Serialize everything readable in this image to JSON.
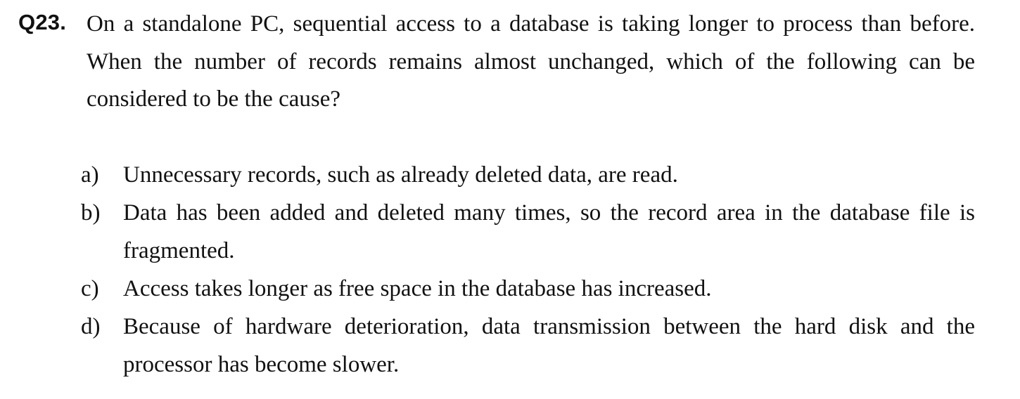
{
  "question": {
    "number": "Q23.",
    "text": "On a standalone PC, sequential access to a database is taking longer to process than before. When the number of records remains almost unchanged, which of the following can be considered to be the cause?"
  },
  "options": [
    {
      "letter": "a)",
      "text": "Unnecessary records, such as already deleted data, are read."
    },
    {
      "letter": "b)",
      "text": "Data has been added and deleted many times, so the record area in the database file is fragmented."
    },
    {
      "letter": "c)",
      "text": "Access takes longer as free space in the database has increased."
    },
    {
      "letter": "d)",
      "text": "Because of hardware deterioration, data transmission between the hard disk and the processor has become slower."
    }
  ]
}
